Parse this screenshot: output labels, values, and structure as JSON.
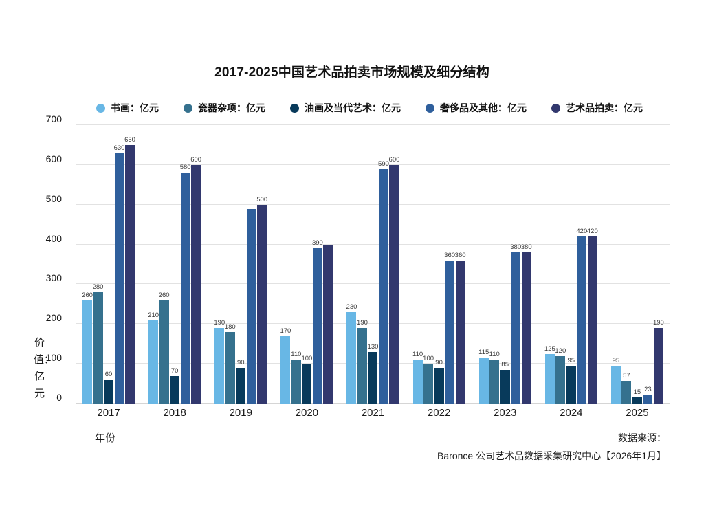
{
  "title": "2017-2025中国艺术品拍卖市场规模及细分结构",
  "chart_data": {
    "type": "bar",
    "title": "2017-2025中国艺术品拍卖市场规模及细分结构",
    "categories": [
      "2017",
      "2018",
      "2019",
      "2020",
      "2021",
      "2022",
      "2023",
      "2024",
      "2025"
    ],
    "series": [
      {
        "name": "书画：亿元",
        "color": "#68B7E5",
        "values": [
          260,
          210,
          190,
          170,
          230,
          110,
          115,
          125,
          95
        ]
      },
      {
        "name": "瓷器杂项：亿元",
        "color": "#35718E",
        "values": [
          280,
          260,
          180,
          110,
          190,
          100,
          110,
          120,
          57
        ]
      },
      {
        "name": "油画及当代艺术：亿元",
        "color": "#083A5B",
        "values": [
          60,
          70,
          90,
          100,
          130,
          90,
          85,
          95,
          15
        ]
      },
      {
        "name": "奢侈品及其他：亿元",
        "color": "#2F5F9C",
        "values": [
          630,
          580,
          490,
          390,
          590,
          360,
          380,
          420,
          23
        ]
      },
      {
        "name": "艺术品拍卖：亿元",
        "color": "#32386E",
        "values": [
          650,
          600,
          500,
          400,
          600,
          360,
          380,
          420,
          190
        ]
      }
    ],
    "missing_value_labels": [
      {
        "series_index": 3,
        "category_index": 2
      },
      {
        "series_index": 4,
        "category_index": 3
      }
    ],
    "xlabel": "年份",
    "ylabel": "价值：亿元",
    "ylim": [
      0,
      700
    ],
    "yticks": [
      0,
      100,
      200,
      300,
      400,
      500,
      600,
      700
    ],
    "grid": true,
    "legend_position": "top"
  },
  "footer": {
    "source_line1": "数据来源：",
    "source_line2": "Baronce 公司艺术品数据采集研究中心【2026年1月】"
  }
}
